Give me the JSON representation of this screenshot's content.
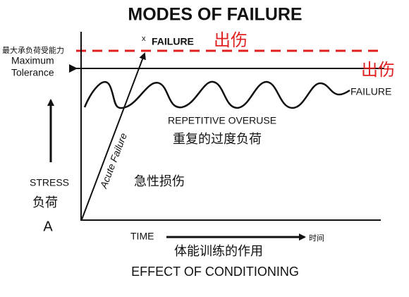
{
  "title": "MODES OF FAILURE",
  "limit": {
    "chinese": "最大承负荷受能力",
    "label_line1": "Maximum",
    "label_line2": "Tolerance",
    "injury": "出伤"
  },
  "acute": {
    "marker": "x",
    "label": "FAILURE",
    "injury": "出伤",
    "line_label": "Acute Failure",
    "chinese": "急性损伤"
  },
  "repetitive": {
    "end_label": "FAILURE",
    "label": "REPETITIVE OVERUSE",
    "chinese": "重复的过度负荷"
  },
  "y_axis": {
    "label": "STRESS",
    "chinese": "负荷",
    "letter": "A"
  },
  "x_axis": {
    "label": "TIME",
    "chinese": "时间"
  },
  "footer": {
    "chinese": "体能训练的作用",
    "label": "EFFECT OF CONDITIONING"
  }
}
